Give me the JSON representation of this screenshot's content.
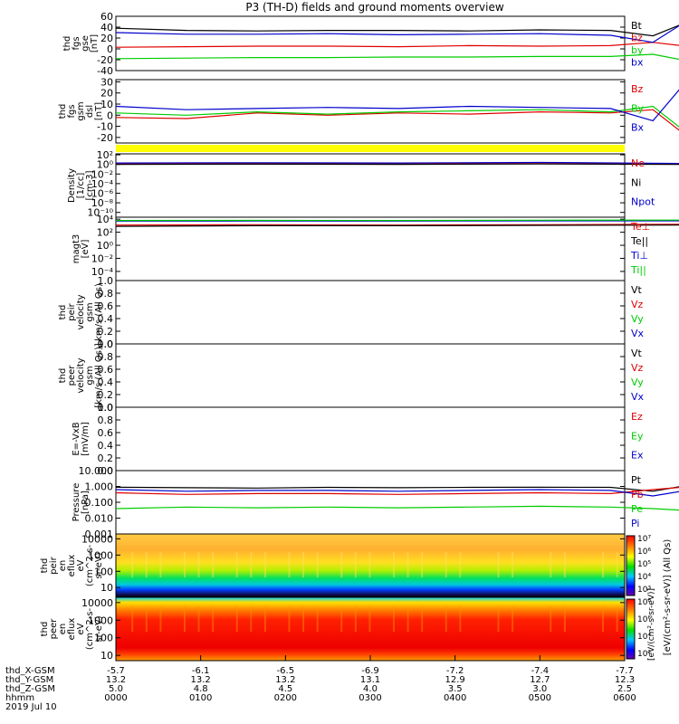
{
  "title": "P3 (TH-D) fields and ground moments overview",
  "colors": {
    "black": "#000000",
    "red": "#e00000",
    "green": "#00cc00",
    "blue": "#0000cc",
    "yellow": "#ffff00"
  },
  "chart_data": [
    {
      "type": "line",
      "id": "p1",
      "ylabel": [
        "thd",
        "fgs",
        "gse",
        "[nT]"
      ],
      "ylim": [
        -40,
        60
      ],
      "ticks": [
        "60",
        "40",
        "20",
        "0",
        "-20",
        "-40"
      ],
      "tick_values": [
        60,
        40,
        20,
        0,
        -20,
        -40
      ],
      "x": [
        0,
        50,
        100,
        150,
        200,
        250,
        300,
        350,
        380,
        400,
        420,
        450,
        500,
        520,
        560,
        600
      ],
      "series": [
        {
          "name": "Bt",
          "color": "black",
          "values": [
            38,
            34,
            33,
            34,
            34,
            33,
            35,
            34,
            24,
            45,
            52,
            52,
            48,
            42,
            45,
            44
          ]
        },
        {
          "name": "bz",
          "color": "red",
          "values": [
            3,
            4,
            5,
            5,
            4,
            6,
            5,
            6,
            12,
            6,
            1,
            2,
            1,
            8,
            5,
            5
          ]
        },
        {
          "name": "by",
          "color": "green",
          "values": [
            -18,
            -17,
            -16,
            -16,
            -15,
            -15,
            -14,
            -14,
            -10,
            -20,
            -22,
            -24,
            -26,
            -22,
            -24,
            -23
          ]
        },
        {
          "name": "bx",
          "color": "blue",
          "values": [
            30,
            27,
            27,
            28,
            26,
            27,
            28,
            25,
            12,
            45,
            47,
            46,
            43,
            33,
            36,
            34
          ]
        }
      ]
    },
    {
      "type": "line",
      "id": "p2",
      "ylabel": [
        "thd",
        "fgs",
        "gsm",
        "dsl",
        "[nT]"
      ],
      "ylim": [
        -25,
        32
      ],
      "ticks": [
        "30",
        "20",
        "10",
        "0",
        "-10",
        "-20"
      ],
      "tick_values": [
        30,
        20,
        10,
        0,
        -10,
        -20
      ],
      "x": [
        0,
        50,
        100,
        150,
        200,
        250,
        300,
        350,
        380,
        400,
        420,
        450,
        500,
        520,
        560,
        600
      ],
      "series": [
        {
          "name": "Bz",
          "color": "red",
          "values": [
            -2,
            -3,
            2,
            0,
            2,
            1,
            3,
            2,
            5,
            -15,
            -18,
            -12,
            -12,
            -5,
            -8,
            -5
          ]
        },
        {
          "name": "By",
          "color": "green",
          "values": [
            2,
            0,
            3,
            1,
            3,
            4,
            5,
            3,
            8,
            -12,
            -14,
            -10,
            -10,
            -3,
            -6,
            -3
          ]
        },
        {
          "name": "Bx",
          "color": "blue",
          "values": [
            8,
            5,
            6,
            7,
            6,
            8,
            7,
            6,
            -5,
            25,
            26,
            24,
            23,
            15,
            20,
            24
          ]
        }
      ]
    },
    {
      "type": "line",
      "id": "p3",
      "ylabel": [
        "Density",
        "[1/cc]",
        "[cm-3]"
      ],
      "log": true,
      "ylim": [
        -11,
        2.2
      ],
      "ticks": [
        "10²",
        "10⁰",
        "10⁻²",
        "10⁻⁴",
        "10⁻⁶",
        "10⁻⁸",
        "10⁻¹⁰"
      ],
      "tick_values": [
        2,
        0,
        -2,
        -4,
        -6,
        -8,
        -10
      ],
      "x": [
        0,
        100,
        200,
        300,
        400,
        500,
        530,
        600
      ],
      "series": [
        {
          "name": "Ne",
          "color": "red",
          "values": [
            0.1,
            0.15,
            0.12,
            0.18,
            0.05,
            -0.3,
            -0.5,
            -0.3
          ]
        },
        {
          "name": "Ni",
          "color": "black",
          "values": [
            0.0,
            0.05,
            0.02,
            0.08,
            0.0,
            -0.35,
            -0.55,
            -0.35
          ]
        },
        {
          "name": "Npot",
          "color": "blue",
          "values": [
            0.3,
            0.35,
            0.3,
            0.4,
            0.2,
            -0.1,
            -0.3,
            -0.1
          ]
        }
      ]
    },
    {
      "type": "line",
      "id": "p4",
      "ylabel": [
        "magt3",
        "[eV]"
      ],
      "log": true,
      "ylim": [
        -5.4,
        4.3
      ],
      "ticks": [
        "10⁴",
        "10²",
        "10⁰",
        "10⁻²",
        "10⁻⁴"
      ],
      "tick_values": [
        4,
        2,
        0,
        -2,
        -4
      ],
      "x": [
        0,
        100,
        200,
        300,
        400,
        500,
        540,
        600
      ],
      "series": [
        {
          "name": "Te⊥",
          "color": "red",
          "values": [
            3.1,
            3.15,
            3.1,
            3.15,
            3.2,
            3.3,
            3.5,
            3.4
          ]
        },
        {
          "name": "Te||",
          "color": "black",
          "values": [
            2.9,
            3.0,
            3.0,
            3.05,
            3.1,
            3.2,
            3.4,
            3.3
          ]
        },
        {
          "name": "Ti⊥",
          "color": "blue",
          "values": [
            3.7,
            3.72,
            3.7,
            3.74,
            3.75,
            3.8,
            3.85,
            3.8
          ]
        },
        {
          "name": "Ti||",
          "color": "green",
          "values": [
            3.8,
            3.82,
            3.8,
            3.84,
            3.85,
            3.88,
            3.9,
            3.9
          ]
        }
      ]
    },
    {
      "type": "line",
      "id": "p5",
      "ylabel": [
        "thd",
        "peir",
        "velocity",
        "gsm",
        "km/s (All Qs)"
      ],
      "ylim": [
        0,
        1
      ],
      "ticks": [
        "1.0",
        "0.8",
        "0.6",
        "0.4",
        "0.2",
        "0.0"
      ],
      "tick_values": [
        1,
        0.8,
        0.6,
        0.4,
        0.2,
        0
      ],
      "x": [],
      "series": [
        {
          "name": "Vt",
          "color": "black",
          "values": []
        },
        {
          "name": "Vz",
          "color": "red",
          "values": []
        },
        {
          "name": "Vy",
          "color": "green",
          "values": []
        },
        {
          "name": "Vx",
          "color": "blue",
          "values": []
        }
      ]
    },
    {
      "type": "line",
      "id": "p6",
      "ylabel": [
        "thd",
        "peer",
        "velocity",
        "gsm",
        "[km/s (All Qs)]"
      ],
      "ylim": [
        0,
        1
      ],
      "ticks": [
        "1.0",
        "0.8",
        "0.6",
        "0.4",
        "0.2",
        "0.0"
      ],
      "tick_values": [
        1,
        0.8,
        0.6,
        0.4,
        0.2,
        0
      ],
      "x": [],
      "series": [
        {
          "name": "Vt",
          "color": "black",
          "values": []
        },
        {
          "name": "Vz",
          "color": "red",
          "values": []
        },
        {
          "name": "Vy",
          "color": "green",
          "values": []
        },
        {
          "name": "Vx",
          "color": "blue",
          "values": []
        }
      ]
    },
    {
      "type": "line",
      "id": "p7",
      "ylabel": [
        "E=-VxB",
        "[mV/m]"
      ],
      "ylim": [
        0,
        1
      ],
      "ticks": [
        "1.0",
        "0.8",
        "0.6",
        "0.4",
        "0.2",
        "0.0"
      ],
      "tick_values": [
        1,
        0.8,
        0.6,
        0.4,
        0.2,
        0
      ],
      "x": [],
      "series": [
        {
          "name": "Ez",
          "color": "red",
          "values": []
        },
        {
          "name": "Ey",
          "color": "green",
          "values": []
        },
        {
          "name": "Ex",
          "color": "blue",
          "values": []
        }
      ]
    },
    {
      "type": "line",
      "id": "p8",
      "ylabel": [
        "Pressure",
        "[nPa]"
      ],
      "log": true,
      "ylim": [
        -3,
        1
      ],
      "ticks": [
        "10.000",
        "1.000",
        "0.100",
        "0.010",
        "0.001"
      ],
      "tick_values": [
        1,
        0,
        -1,
        -2,
        -3
      ],
      "x": [
        0,
        50,
        100,
        150,
        200,
        250,
        300,
        350,
        380,
        400,
        420,
        450,
        500,
        520,
        560,
        600
      ],
      "series": [
        {
          "name": "Pt",
          "color": "black",
          "values": [
            -0.05,
            -0.08,
            -0.1,
            -0.06,
            -0.08,
            -0.06,
            -0.05,
            -0.06,
            -0.3,
            0.0,
            0.03,
            0.05,
            0.02,
            0.0,
            0.0,
            -0.02
          ]
        },
        {
          "name": "Pb",
          "color": "red",
          "values": [
            -0.4,
            -0.5,
            -0.45,
            -0.45,
            -0.5,
            -0.45,
            -0.4,
            -0.45,
            -0.2,
            -0.05,
            -0.03,
            0.0,
            -0.05,
            -0.1,
            -0.05,
            -0.05
          ]
        },
        {
          "name": "Pe",
          "color": "green",
          "values": [
            -1.4,
            -1.3,
            -1.35,
            -1.3,
            -1.35,
            -1.3,
            -1.25,
            -1.3,
            -1.4,
            -1.5,
            -1.6,
            -1.6,
            -1.6,
            -1.55,
            -1.5,
            -1.5
          ]
        },
        {
          "name": "Pi",
          "color": "blue",
          "values": [
            -0.2,
            -0.3,
            -0.25,
            -0.25,
            -0.3,
            -0.25,
            -0.2,
            -0.25,
            -0.6,
            -0.3,
            -0.5,
            -0.55,
            -0.5,
            -0.6,
            -0.4,
            -0.3
          ]
        }
      ]
    },
    {
      "type": "heatmap",
      "id": "p9",
      "ylabel": [
        "thd",
        "peir",
        "en",
        "eflux",
        "eV",
        "(cm^2-s-",
        "sr-eV)"
      ],
      "log": true,
      "ylim": [
        0.4,
        4.3
      ],
      "ticks": [
        "10000",
        "1000",
        "100",
        "10"
      ],
      "tick_values": [
        4,
        3,
        2,
        1
      ]
    },
    {
      "type": "heatmap",
      "id": "p10",
      "ylabel": [
        "thd",
        "peer",
        "en",
        "eflux",
        "eV",
        "(cm^2-s-",
        "sr-eV)"
      ],
      "log": true,
      "ylim": [
        0.7,
        4.3
      ],
      "ticks": [
        "10000",
        "1000",
        "100",
        "10"
      ],
      "tick_values": [
        4,
        3,
        2,
        1
      ]
    }
  ],
  "colorbar": {
    "label": "[eV/(cm²-s-sr-eV)] (All Qs)",
    "label2": "[eV/(cm²-s-sr-eV)]",
    "ticks1": [
      "10⁷",
      "10⁶",
      "10⁵",
      "10⁴",
      "10³"
    ],
    "ticks2": [
      "10⁸",
      "10⁶",
      "10⁴",
      "10²"
    ]
  },
  "x_axis": {
    "tick_minutes": [
      0,
      60,
      120,
      180,
      240,
      300,
      360
    ],
    "rows": [
      {
        "label": "thd_X-GSM",
        "values": [
          "-5.7",
          "-6.1",
          "-6.5",
          "-6.9",
          "-7.2",
          "-7.4",
          "-7.7"
        ]
      },
      {
        "label": "thd_Y-GSM",
        "values": [
          "13.2",
          "13.2",
          "13.2",
          "13.1",
          "12.9",
          "12.7",
          "12.3"
        ]
      },
      {
        "label": "thd_Z-GSM",
        "values": [
          "5.0",
          "4.8",
          "4.5",
          "4.0",
          "3.5",
          "3.0",
          "2.5"
        ]
      },
      {
        "label": "hhmm",
        "values": [
          "0000",
          "0100",
          "0200",
          "0300",
          "0400",
          "0500",
          "0600"
        ]
      }
    ],
    "date": "2019 Jul 10"
  }
}
